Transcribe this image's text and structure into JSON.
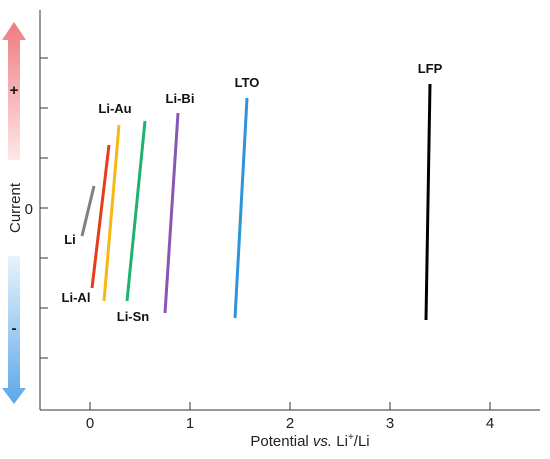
{
  "chart_data": {
    "type": "line",
    "title": "",
    "xlabel": "Potential vs. Li⁺/Li",
    "xlabel_parts": [
      "Potential ",
      "vs.",
      " Li",
      "+",
      "/Li"
    ],
    "ylabel": "Current",
    "x_ticks": [
      0,
      1,
      2,
      3,
      4
    ],
    "y_tick_labels": [
      "0"
    ],
    "xlim": [
      -0.5,
      4.5
    ],
    "current_arrow": {
      "positive_label": "+",
      "negative_label": "-",
      "positive_color": "#f08080",
      "negative_color": "#6aaee6"
    },
    "grid": false,
    "series": [
      {
        "name": "Li",
        "color": "#808080",
        "x": [
          -0.08,
          0.04
        ],
        "y": [
          -0.28,
          0.22
        ]
      },
      {
        "name": "Li-Al",
        "color": "#e53c1c",
        "x": [
          0.02,
          0.19
        ],
        "y": [
          -0.8,
          0.63
        ]
      },
      {
        "name": "Li-Au",
        "color": "#f6b817",
        "x": [
          0.14,
          0.29
        ],
        "y": [
          -0.93,
          0.83
        ]
      },
      {
        "name": "Li-Sn",
        "color": "#1fb26e",
        "x": [
          0.37,
          0.55
        ],
        "y": [
          -0.93,
          0.87
        ]
      },
      {
        "name": "Li-Bi",
        "color": "#8a56b5",
        "x": [
          0.75,
          0.88
        ],
        "y": [
          -1.05,
          0.95
        ]
      },
      {
        "name": "LTO",
        "color": "#2e93d8",
        "x": [
          1.45,
          1.57
        ],
        "y": [
          -1.1,
          1.1
        ]
      },
      {
        "name": "LFP",
        "color": "#000000",
        "x": [
          3.36,
          3.4
        ],
        "y": [
          -1.12,
          1.24
        ]
      }
    ]
  }
}
